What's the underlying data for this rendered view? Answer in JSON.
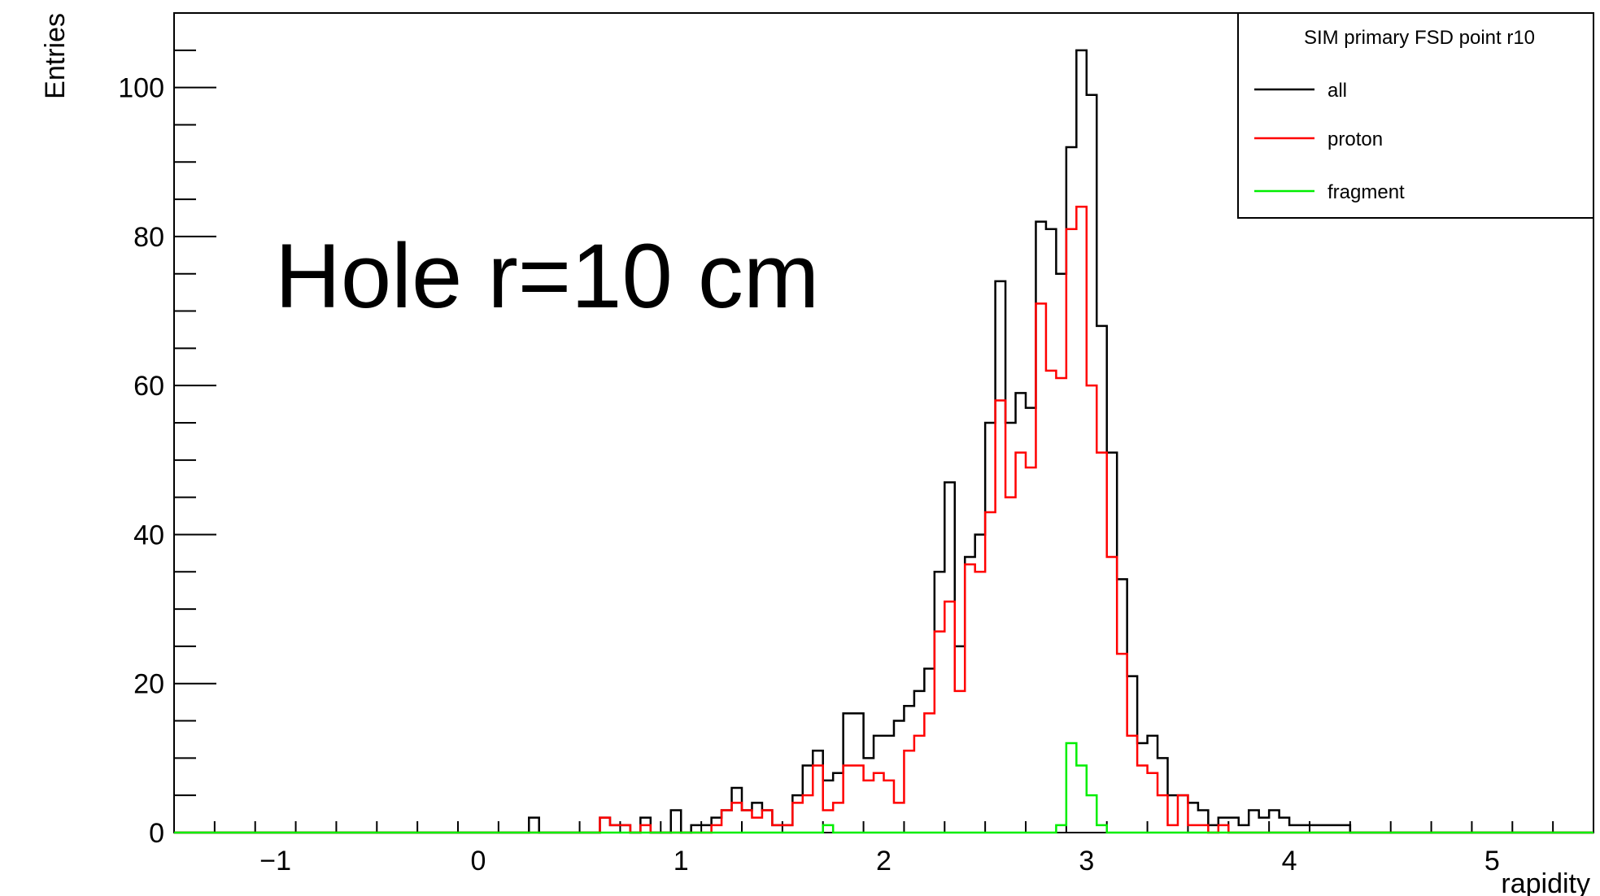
{
  "chart_data": {
    "type": "histogram",
    "title": "",
    "xlabel": "rapidity",
    "ylabel": "Entries",
    "xlim": [
      -1.5,
      5.5
    ],
    "ylim": [
      0,
      110
    ],
    "bin_width": 0.05,
    "x_ticks": [
      -1,
      0,
      1,
      2,
      3,
      4,
      5
    ],
    "x_tick_labels": [
      "−1",
      "0",
      "1",
      "2",
      "3",
      "4",
      "5"
    ],
    "y_ticks": [
      0,
      20,
      40,
      60,
      80,
      100
    ],
    "y_tick_labels": [
      "0",
      "20",
      "40",
      "60",
      "80",
      "100"
    ],
    "annotation": "Hole r=10 cm",
    "legend": {
      "title": "SIM primary FSD point r10",
      "position": "top-right"
    },
    "series": [
      {
        "name": "all",
        "color": "#000000",
        "bins": [
          [
            0.25,
            2
          ],
          [
            0.6,
            2
          ],
          [
            0.65,
            1
          ],
          [
            0.7,
            1
          ],
          [
            0.8,
            2
          ],
          [
            0.95,
            3
          ],
          [
            1.05,
            1
          ],
          [
            1.1,
            1
          ],
          [
            1.15,
            2
          ],
          [
            1.2,
            3
          ],
          [
            1.25,
            6
          ],
          [
            1.3,
            3
          ],
          [
            1.35,
            4
          ],
          [
            1.4,
            3
          ],
          [
            1.45,
            1
          ],
          [
            1.5,
            1
          ],
          [
            1.55,
            5
          ],
          [
            1.6,
            9
          ],
          [
            1.65,
            11
          ],
          [
            1.7,
            7
          ],
          [
            1.75,
            8
          ],
          [
            1.8,
            16
          ],
          [
            1.85,
            16
          ],
          [
            1.9,
            10
          ],
          [
            1.95,
            13
          ],
          [
            2.0,
            13
          ],
          [
            2.05,
            15
          ],
          [
            2.1,
            17
          ],
          [
            2.15,
            19
          ],
          [
            2.2,
            22
          ],
          [
            2.25,
            35
          ],
          [
            2.3,
            47
          ],
          [
            2.35,
            25
          ],
          [
            2.4,
            37
          ],
          [
            2.45,
            40
          ],
          [
            2.5,
            55
          ],
          [
            2.55,
            74
          ],
          [
            2.6,
            55
          ],
          [
            2.65,
            59
          ],
          [
            2.7,
            57
          ],
          [
            2.75,
            82
          ],
          [
            2.8,
            81
          ],
          [
            2.85,
            75
          ],
          [
            2.9,
            92
          ],
          [
            2.95,
            105
          ],
          [
            3.0,
            99
          ],
          [
            3.05,
            68
          ],
          [
            3.1,
            51
          ],
          [
            3.15,
            34
          ],
          [
            3.2,
            21
          ],
          [
            3.25,
            12
          ],
          [
            3.3,
            13
          ],
          [
            3.35,
            10
          ],
          [
            3.4,
            5
          ],
          [
            3.45,
            5
          ],
          [
            3.5,
            4
          ],
          [
            3.55,
            3
          ],
          [
            3.6,
            1
          ],
          [
            3.65,
            2
          ],
          [
            3.7,
            2
          ],
          [
            3.75,
            1
          ],
          [
            3.8,
            3
          ],
          [
            3.85,
            2
          ],
          [
            3.9,
            3
          ],
          [
            3.95,
            2
          ],
          [
            4.0,
            1
          ],
          [
            4.05,
            1
          ],
          [
            4.1,
            1
          ],
          [
            4.15,
            1
          ],
          [
            4.2,
            1
          ],
          [
            4.25,
            1
          ]
        ]
      },
      {
        "name": "proton",
        "color": "#ff0000",
        "bins": [
          [
            0.6,
            2
          ],
          [
            0.65,
            1
          ],
          [
            0.7,
            1
          ],
          [
            0.8,
            1
          ],
          [
            1.15,
            1
          ],
          [
            1.2,
            3
          ],
          [
            1.25,
            4
          ],
          [
            1.3,
            3
          ],
          [
            1.35,
            2
          ],
          [
            1.4,
            3
          ],
          [
            1.45,
            1
          ],
          [
            1.5,
            1
          ],
          [
            1.55,
            4
          ],
          [
            1.6,
            5
          ],
          [
            1.65,
            9
          ],
          [
            1.7,
            3
          ],
          [
            1.75,
            4
          ],
          [
            1.8,
            9
          ],
          [
            1.85,
            9
          ],
          [
            1.9,
            7
          ],
          [
            1.95,
            8
          ],
          [
            2.0,
            7
          ],
          [
            2.05,
            4
          ],
          [
            2.1,
            11
          ],
          [
            2.15,
            13
          ],
          [
            2.2,
            16
          ],
          [
            2.25,
            27
          ],
          [
            2.3,
            31
          ],
          [
            2.35,
            19
          ],
          [
            2.4,
            36
          ],
          [
            2.45,
            35
          ],
          [
            2.5,
            43
          ],
          [
            2.55,
            58
          ],
          [
            2.6,
            45
          ],
          [
            2.65,
            51
          ],
          [
            2.7,
            49
          ],
          [
            2.75,
            71
          ],
          [
            2.8,
            62
          ],
          [
            2.85,
            61
          ],
          [
            2.9,
            81
          ],
          [
            2.95,
            84
          ],
          [
            3.0,
            60
          ],
          [
            3.05,
            51
          ],
          [
            3.1,
            37
          ],
          [
            3.15,
            24
          ],
          [
            3.2,
            13
          ],
          [
            3.25,
            9
          ],
          [
            3.3,
            8
          ],
          [
            3.35,
            5
          ],
          [
            3.4,
            1
          ],
          [
            3.45,
            5
          ],
          [
            3.5,
            1
          ],
          [
            3.55,
            1
          ],
          [
            3.65,
            1
          ]
        ]
      },
      {
        "name": "fragment",
        "color": "#00ee00",
        "bins": [
          [
            1.7,
            1
          ],
          [
            2.85,
            1
          ],
          [
            2.9,
            12
          ],
          [
            2.95,
            9
          ],
          [
            3.0,
            5
          ],
          [
            3.05,
            1
          ]
        ]
      }
    ]
  }
}
